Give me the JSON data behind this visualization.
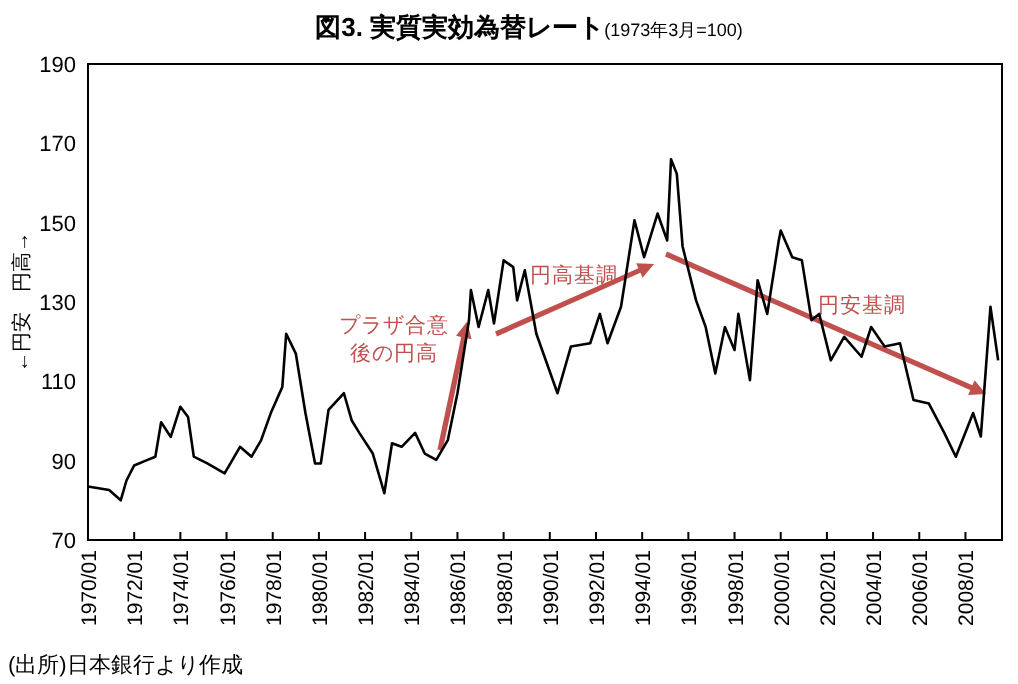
{
  "chart_data": {
    "type": "line",
    "title": "図3. 実質実効為替レート",
    "subtitle": "(1973年3月=100)",
    "ylabel": "←円安　円高→",
    "xlim": [
      "1970-01",
      "2009-08"
    ],
    "ylim": [
      70,
      190
    ],
    "yticks": [
      70,
      90,
      110,
      130,
      150,
      170,
      190
    ],
    "xticks": [
      {
        "value": "1970-01",
        "label": "1970/01"
      },
      {
        "value": "1972-01",
        "label": "1972/01"
      },
      {
        "value": "1974-01",
        "label": "1974/01"
      },
      {
        "value": "1976-01",
        "label": "1976/01"
      },
      {
        "value": "1978-01",
        "label": "1978/01"
      },
      {
        "value": "1980-01",
        "label": "1980/01"
      },
      {
        "value": "1982-01",
        "label": "1982/01"
      },
      {
        "value": "1984-01",
        "label": "1984/01"
      },
      {
        "value": "1986-01",
        "label": "1986/01"
      },
      {
        "value": "1988-01",
        "label": "1988/01"
      },
      {
        "value": "1990-01",
        "label": "1990/01"
      },
      {
        "value": "1992-01",
        "label": "1992/01"
      },
      {
        "value": "1994-01",
        "label": "1994/01"
      },
      {
        "value": "1996-01",
        "label": "1996/01"
      },
      {
        "value": "1998-01",
        "label": "1998/01"
      },
      {
        "value": "2000-01",
        "label": "2000/01"
      },
      {
        "value": "2002-01",
        "label": "2002/01"
      },
      {
        "value": "2004-01",
        "label": "2004/01"
      },
      {
        "value": "2006-01",
        "label": "2006/01"
      },
      {
        "value": "2008-01",
        "label": "2008/01"
      }
    ],
    "grid": false,
    "series": [
      {
        "color": "#000000",
        "x": [
          "1970-01",
          "1970-12",
          "1971-06",
          "1971-09",
          "1972-01",
          "1972-07",
          "1972-12",
          "1973-03",
          "1973-08",
          "1974-01",
          "1974-05",
          "1974-08",
          "1975-03",
          "1975-12",
          "1976-08",
          "1977-02",
          "1977-07",
          "1977-12",
          "1978-06",
          "1978-08",
          "1979-01",
          "1979-06",
          "1979-11",
          "1980-02",
          "1980-06",
          "1980-09",
          "1981-02",
          "1981-06",
          "1981-10",
          "1982-05",
          "1982-11",
          "1983-03",
          "1983-08",
          "1984-03",
          "1984-08",
          "1985-02",
          "1985-08",
          "1986-01",
          "1986-07",
          "1986-08",
          "1986-12",
          "1987-05",
          "1987-08",
          "1988-01",
          "1988-06",
          "1988-08",
          "1988-12",
          "1989-06",
          "1990-05",
          "1990-12",
          "1991-10",
          "1992-03",
          "1992-07",
          "1993-02",
          "1993-09",
          "1994-02",
          "1994-09",
          "1995-02",
          "1995-04",
          "1995-07",
          "1995-10",
          "1996-05",
          "1996-10",
          "1997-03",
          "1997-08",
          "1998-01",
          "1998-03",
          "1998-09",
          "1999-01",
          "1999-06",
          "1999-12",
          "2000-01",
          "2000-07",
          "2000-12",
          "2001-05",
          "2001-09",
          "2002-03",
          "2002-10",
          "2003-07",
          "2003-12",
          "2004-07",
          "2005-03",
          "2005-10",
          "2006-06",
          "2007-02",
          "2007-08",
          "2008-05",
          "2008-09",
          "2009-02",
          "2009-06"
        ],
        "values": [
          83.5,
          82.6,
          80,
          85,
          88.8,
          90,
          91,
          99.7,
          96,
          103.6,
          101,
          91,
          89.3,
          86.8,
          93.5,
          91,
          95.2,
          102,
          108.6,
          122,
          117,
          102,
          89.3,
          89.3,
          102.8,
          104.4,
          107,
          100.2,
          97,
          91.8,
          81.8,
          94.4,
          93.5,
          97,
          91.8,
          90.2,
          95.2,
          107,
          125.4,
          133,
          123.7,
          133,
          124.6,
          140.5,
          138.8,
          130.4,
          138,
          122,
          107,
          118.8,
          119.6,
          127,
          119.6,
          128.8,
          150.6,
          141.3,
          152.3,
          145.5,
          166,
          162.3,
          144,
          130.4,
          123.7,
          112,
          123.7,
          117.9,
          127,
          110.3,
          135.5,
          127,
          145.5,
          148,
          141.3,
          140.5,
          125.4,
          127,
          115.3,
          121.2,
          116.2,
          123.7,
          118.8,
          119.6,
          105.3,
          104.4,
          97,
          91,
          102,
          96.1,
          128.8,
          115.3
        ]
      }
    ],
    "annotations": [
      {
        "text": "プラザ合意後の円高",
        "x": "1986-06",
        "y": 125
      },
      "円高基調",
      "円安基調",
      "(出所)日本銀行より作成"
    ]
  }
}
